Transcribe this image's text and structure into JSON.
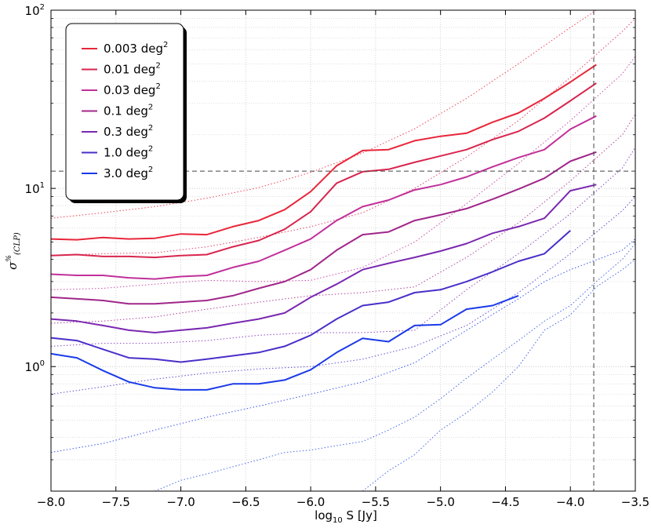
{
  "chart_data": {
    "type": "line",
    "xlabel": "log10 S [Jy]",
    "xlabel_main": "log",
    "xlabel_sub": "10",
    "xlabel_tail": " S [Jy]",
    "ylabel": "σ%(CLP)",
    "ylabel_main": "σ",
    "ylabel_sup": "%",
    "ylabel_sub": "(CLP)",
    "xlim": [
      -8.0,
      -3.5
    ],
    "ylim": [
      0.2,
      100
    ],
    "yscale": "log",
    "grid": true,
    "legend_position": "top-left",
    "x_ticks": [
      "−8.0",
      "−7.5",
      "−7.0",
      "−6.5",
      "−6.0",
      "−5.5",
      "−5.0",
      "−4.5",
      "−4.0",
      "−3.5"
    ],
    "y_ticks": [
      "10",
      "10",
      "10"
    ],
    "y_tick_exps": [
      "0",
      "1",
      "2"
    ],
    "reference_lines": {
      "x": -3.82,
      "y": 12.5
    },
    "series": [
      {
        "name": "0.003 deg",
        "unit_sup": "2",
        "color": "#e8263a",
        "x": [
          -8.0,
          -7.8,
          -7.6,
          -7.4,
          -7.2,
          -7.0,
          -6.8,
          -6.6,
          -6.4,
          -6.2,
          -6.0,
          -5.8,
          -5.6,
          -5.4,
          -5.2,
          -5.0,
          -4.8,
          -4.6,
          -4.4,
          -4.2,
          -4.0,
          -3.8
        ],
        "y": [
          5.2,
          5.15,
          5.3,
          5.2,
          5.25,
          5.55,
          5.5,
          6.1,
          6.6,
          7.6,
          9.6,
          13.4,
          16.3,
          16.5,
          18.5,
          19.6,
          20.4,
          23.5,
          26.5,
          32.0,
          39.5,
          49.5
        ],
        "extrap_x": [
          -8.0,
          -7.6,
          -7.2,
          -6.8,
          -6.4,
          -6.0,
          -5.6,
          -5.2,
          -4.8,
          -4.4,
          -4.0,
          -3.8
        ],
        "extrap_y": [
          6.8,
          7.3,
          7.9,
          8.8,
          10.1,
          12.3,
          15.8,
          21.6,
          32.0,
          50.0,
          80.0,
          100.0
        ]
      },
      {
        "name": "0.01 deg",
        "unit_sup": "2",
        "color": "#d8254e",
        "x": [
          -8.0,
          -7.8,
          -7.6,
          -7.4,
          -7.2,
          -7.0,
          -6.8,
          -6.6,
          -6.4,
          -6.2,
          -6.0,
          -5.8,
          -5.6,
          -5.4,
          -5.2,
          -5.0,
          -4.8,
          -4.6,
          -4.4,
          -4.2,
          -4.0,
          -3.8
        ],
        "y": [
          4.2,
          4.25,
          4.15,
          4.15,
          4.1,
          4.2,
          4.25,
          4.7,
          5.1,
          5.9,
          7.4,
          10.7,
          12.4,
          12.8,
          14.0,
          15.2,
          16.5,
          18.8,
          20.9,
          24.8,
          31.0,
          39.0
        ],
        "extrap_x": [
          -8.0,
          -7.6,
          -7.2,
          -6.8,
          -6.4,
          -6.0,
          -5.6,
          -5.2,
          -4.8,
          -4.4,
          -4.0,
          -3.6,
          -3.5
        ],
        "extrap_y": [
          4.2,
          4.3,
          4.35,
          4.7,
          5.3,
          6.1,
          7.3,
          10.0,
          15.0,
          24.0,
          42.0,
          76.0,
          90.0
        ]
      },
      {
        "name": "0.03 deg",
        "unit_sup": "2",
        "color": "#c0309a",
        "x": [
          -8.0,
          -7.8,
          -7.6,
          -7.4,
          -7.2,
          -7.0,
          -6.8,
          -6.6,
          -6.4,
          -6.2,
          -6.0,
          -5.8,
          -5.6,
          -5.4,
          -5.2,
          -5.0,
          -4.8,
          -4.6,
          -4.4,
          -4.2,
          -4.0,
          -3.8
        ],
        "y": [
          3.3,
          3.25,
          3.25,
          3.15,
          3.1,
          3.2,
          3.25,
          3.6,
          3.9,
          4.5,
          5.2,
          6.6,
          7.9,
          8.6,
          9.8,
          10.5,
          11.6,
          13.2,
          14.9,
          16.5,
          21.5,
          25.5
        ],
        "extrap_x": [
          -8.0,
          -7.6,
          -7.2,
          -6.8,
          -6.4,
          -6.0,
          -5.6,
          -5.2,
          -4.8,
          -4.4,
          -4.0,
          -3.6,
          -3.5
        ],
        "extrap_y": [
          2.7,
          2.75,
          2.9,
          3.05,
          3.0,
          3.05,
          3.6,
          5.0,
          8.2,
          13.8,
          24.0,
          44.0,
          55.0
        ]
      },
      {
        "name": "0.1 deg",
        "unit_sup": "2",
        "color": "#a0268a",
        "x": [
          -8.0,
          -7.8,
          -7.6,
          -7.4,
          -7.2,
          -7.0,
          -6.8,
          -6.6,
          -6.4,
          -6.2,
          -6.0,
          -5.8,
          -5.6,
          -5.4,
          -5.2,
          -5.0,
          -4.8,
          -4.6,
          -4.4,
          -4.2,
          -4.0,
          -3.8
        ],
        "y": [
          2.45,
          2.4,
          2.35,
          2.25,
          2.25,
          2.3,
          2.35,
          2.5,
          2.75,
          3.0,
          3.5,
          4.5,
          5.5,
          5.7,
          6.6,
          7.1,
          7.7,
          8.7,
          9.9,
          11.4,
          14.2,
          16.0
        ],
        "extrap_x": [
          -8.0,
          -7.6,
          -7.2,
          -6.8,
          -6.4,
          -6.0,
          -5.6,
          -5.2,
          -4.8,
          -4.4,
          -4.0,
          -3.6,
          -3.5
        ],
        "extrap_y": [
          1.75,
          1.8,
          1.9,
          2.1,
          2.3,
          2.5,
          2.6,
          2.8,
          4.1,
          6.4,
          11.0,
          20.0,
          26.0
        ]
      },
      {
        "name": "0.3 deg",
        "unit_sup": "2",
        "color": "#7a28b0",
        "x": [
          -8.0,
          -7.8,
          -7.6,
          -7.4,
          -7.2,
          -7.0,
          -6.8,
          -6.6,
          -6.4,
          -6.2,
          -6.0,
          -5.8,
          -5.6,
          -5.4,
          -5.2,
          -5.0,
          -4.8,
          -4.6,
          -4.4,
          -4.2,
          -4.0,
          -3.8
        ],
        "y": [
          1.85,
          1.8,
          1.7,
          1.6,
          1.55,
          1.6,
          1.65,
          1.75,
          1.85,
          2.0,
          2.45,
          2.9,
          3.5,
          3.8,
          4.1,
          4.45,
          4.9,
          5.6,
          6.1,
          6.8,
          9.7,
          10.5
        ],
        "extrap_x": [
          -8.0,
          -7.6,
          -7.2,
          -6.8,
          -6.4,
          -6.0,
          -5.6,
          -5.2,
          -4.8,
          -4.4,
          -4.0,
          -3.6,
          -3.5
        ],
        "extrap_y": [
          1.3,
          1.35,
          1.35,
          1.4,
          1.5,
          1.55,
          1.55,
          1.6,
          2.7,
          4.3,
          7.2,
          13.0,
          17.0
        ]
      },
      {
        "name": "1.0 deg",
        "unit_sup": "2",
        "color": "#4a2ec8",
        "x": [
          -8.0,
          -7.8,
          -7.6,
          -7.4,
          -7.2,
          -7.0,
          -6.8,
          -6.6,
          -6.4,
          -6.2,
          -6.0,
          -5.8,
          -5.6,
          -5.4,
          -5.2,
          -5.0,
          -4.8,
          -4.6,
          -4.4,
          -4.2,
          -4.0
        ],
        "y": [
          1.45,
          1.4,
          1.25,
          1.12,
          1.1,
          1.06,
          1.1,
          1.15,
          1.2,
          1.3,
          1.5,
          1.85,
          2.2,
          2.3,
          2.6,
          2.7,
          3.0,
          3.4,
          3.9,
          4.3,
          5.8
        ],
        "extrap_x": [
          -8.0,
          -7.6,
          -7.2,
          -6.8,
          -6.4,
          -6.0,
          -5.6,
          -5.2,
          -4.8,
          -4.4,
          -4.0,
          -3.6,
          -3.5
        ],
        "extrap_y": [
          0.7,
          0.77,
          0.85,
          0.92,
          0.97,
          1.0,
          1.1,
          1.3,
          1.7,
          2.6,
          4.3,
          7.5,
          9.0
        ]
      },
      {
        "name": "3.0 deg",
        "unit_sup": "2",
        "color": "#1a3ae8",
        "x": [
          -8.0,
          -7.8,
          -7.6,
          -7.4,
          -7.2,
          -7.0,
          -6.8,
          -6.6,
          -6.4,
          -6.2,
          -6.0,
          -5.8,
          -5.6,
          -5.4,
          -5.2,
          -5.0,
          -4.8,
          -4.6,
          -4.4
        ],
        "y": [
          1.18,
          1.12,
          0.95,
          0.82,
          0.76,
          0.74,
          0.74,
          0.8,
          0.8,
          0.84,
          0.96,
          1.2,
          1.44,
          1.38,
          1.7,
          1.72,
          2.1,
          2.2,
          2.5
        ],
        "extrap_x": [
          -8.0,
          -7.6,
          -7.2,
          -6.8,
          -6.4,
          -6.0,
          -5.6,
          -5.2,
          -4.8,
          -4.4,
          -4.2,
          -4.0,
          -3.6,
          -3.5
        ],
        "extrap_y": [
          0.33,
          0.37,
          0.44,
          0.52,
          0.6,
          0.7,
          0.82,
          1.05,
          1.6,
          2.4,
          3.0,
          3.5,
          4.5,
          5.2
        ]
      }
    ],
    "extra_dotted": [
      {
        "color": "#2850e0",
        "x": [
          -7.2,
          -7.0,
          -6.8,
          -6.4,
          -6.2,
          -6.0,
          -5.8,
          -5.6,
          -5.4,
          -5.2,
          -5.0,
          -4.8,
          -4.6,
          -4.4,
          -4.2,
          -4.0,
          -3.8,
          -3.6,
          -3.5
        ],
        "y": [
          0.2,
          0.23,
          0.25,
          0.3,
          0.33,
          0.34,
          0.36,
          0.38,
          0.44,
          0.52,
          0.66,
          0.86,
          1.1,
          1.4,
          1.8,
          2.2,
          3.0,
          4.0,
          4.9
        ]
      },
      {
        "color": "#2850e0",
        "x": [
          -5.6,
          -5.4,
          -5.2,
          -5.0,
          -4.8,
          -4.6,
          -4.4,
          -4.2,
          -4.0,
          -3.8,
          -3.6,
          -3.5
        ],
        "y": [
          0.2,
          0.26,
          0.32,
          0.44,
          0.55,
          0.72,
          1.0,
          1.6,
          1.95,
          2.8,
          3.5,
          4.0
        ]
      }
    ]
  }
}
